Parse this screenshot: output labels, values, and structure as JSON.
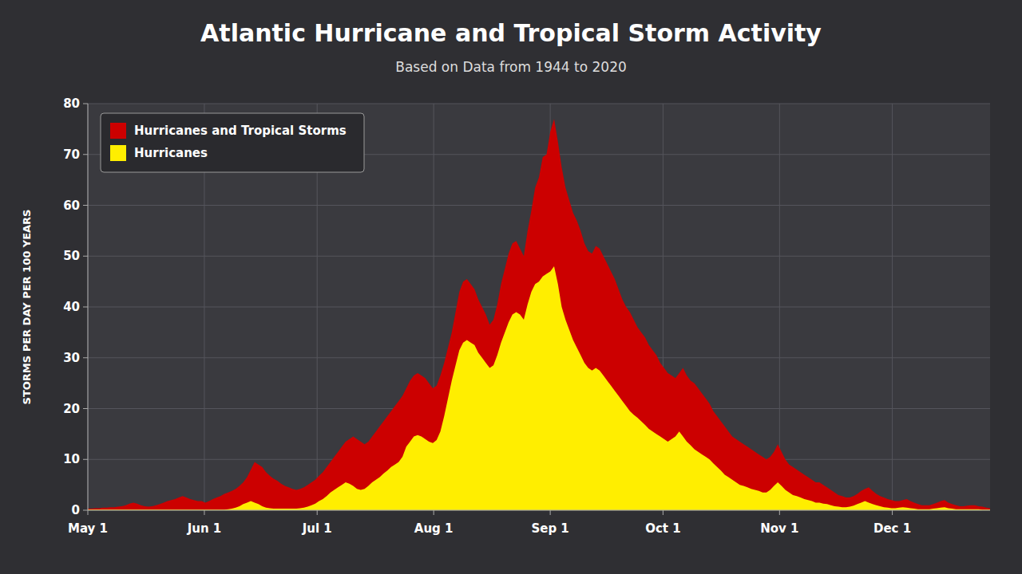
{
  "chart_data": {
    "type": "area",
    "title": "Atlantic Hurricane and Tropical Storm Activity",
    "subtitle": "Based on Data from 1944 to 2020",
    "y_label": "STORMS PER DAY PER 100 YEARS",
    "x": [
      0,
      1.0084,
      2.0168,
      3.0252,
      4.0336,
      5.042,
      6.0504,
      7.0588,
      8.0672,
      9.0756,
      10.084,
      11.0924,
      12.1008,
      13.1092,
      14.1176,
      15.1261,
      16.1345,
      17.1429,
      18.1513,
      19.1597,
      20.1681,
      21.1765,
      22.1849,
      23.1933,
      24.2017,
      25.2101,
      26.2185,
      27.2269,
      28.2353,
      29.2437,
      30.2521,
      31.2605,
      32.2689,
      33.2773,
      34.2857,
      35.2941,
      36.3025,
      37.3109,
      38.3193,
      39.3277,
      40.3361,
      41.3445,
      42.3529,
      43.3613,
      44.3697,
      45.3782,
      46.3866,
      47.395,
      48.4034,
      49.4118,
      50.4202,
      51.4286,
      52.437,
      53.4454,
      54.4538,
      55.4622,
      56.4706,
      57.479,
      58.4874,
      59.4958,
      60.5042,
      61.5126,
      62.521,
      63.5294,
      64.5378,
      65.5462,
      66.5546,
      67.563,
      68.5714,
      69.5798,
      70.5882,
      71.5966,
      72.605,
      73.6134,
      74.6218,
      75.6303,
      76.6387,
      77.6471,
      78.6555,
      79.6639,
      80.6723,
      81.6807,
      82.6891,
      83.6975,
      84.7059,
      85.7143,
      86.7227,
      87.7311,
      88.7395,
      89.7479,
      90.7563,
      91.7647,
      92.7731,
      93.7815,
      94.7899,
      95.7983,
      96.8067,
      97.8151,
      98.8235,
      99.8319,
      100.8403,
      101.8487,
      102.8571,
      103.8655,
      104.8739,
      105.8824,
      106.8908,
      107.8992,
      108.9076,
      109.916,
      110.9244,
      111.9328,
      112.9412,
      113.9496,
      114.958,
      115.9664,
      116.9748,
      117.9832,
      118.9916,
      120,
      121.0084,
      122.0168,
      123.0252,
      124.0336,
      125.042,
      126.0504,
      127.0588,
      128.0672,
      129.0756,
      130.084,
      131.0924,
      132.1008,
      133.1092,
      134.1176,
      135.1261,
      136.1345,
      137.1429,
      138.1513,
      139.1597,
      140.1681,
      141.1765,
      142.1849,
      143.1933,
      144.2017,
      145.2101,
      146.2185,
      147.2269,
      148.2353,
      149.2437,
      150.2521,
      151.2605,
      152.2689,
      153.2773,
      154.2857,
      155.2941,
      156.3025,
      157.3109,
      158.3193,
      159.3277,
      160.3361,
      161.3445,
      162.3529,
      163.3613,
      164.3697,
      165.3782,
      166.3866,
      167.395,
      168.4034,
      169.4118,
      170.4202,
      171.4286,
      172.437,
      173.4454,
      174.4538,
      175.4622,
      176.4706,
      177.479,
      178.4874,
      179.4958,
      180.5042,
      181.5126,
      182.521,
      183.5294,
      184.5378,
      185.5462,
      186.5546,
      187.563,
      188.5714,
      189.5798,
      190.5882,
      191.5966,
      192.605,
      193.6134,
      194.6218,
      195.6303,
      196.6387,
      197.6471,
      198.6555,
      199.6639,
      200.6723,
      201.6807,
      202.6891,
      203.6975,
      204.7059,
      205.7143,
      206.7227,
      207.7311,
      208.7395,
      209.7479,
      210.7563,
      211.7647,
      212.7731,
      213.7815,
      214.7899,
      215.7983,
      216.8067,
      217.8151,
      218.8235,
      219.8319,
      220.8403,
      221.8487,
      222.8571,
      223.8655,
      224.8739,
      225.8824,
      226.8908,
      227.8992,
      228.9076,
      229.916,
      230.9244,
      231.9328,
      232.9412,
      233.9496,
      234.958,
      235.9664,
      236.9748,
      237.9832,
      238.9916,
      240
    ],
    "xlim": [
      0,
      240
    ],
    "xticks": [
      {
        "value": 0,
        "label": "May 1"
      },
      {
        "value": 31,
        "label": "Jun 1"
      },
      {
        "value": 61,
        "label": "Jul 1"
      },
      {
        "value": 92,
        "label": "Aug 1"
      },
      {
        "value": 123,
        "label": "Sep 1"
      },
      {
        "value": 153,
        "label": "Oct 1"
      },
      {
        "value": 184,
        "label": "Nov 1"
      },
      {
        "value": 214,
        "label": "Dec 1"
      }
    ],
    "ylim": [
      0,
      80
    ],
    "yticks": [
      0,
      10,
      20,
      30,
      40,
      50,
      60,
      70,
      80
    ],
    "grid": true,
    "legend": "upper left",
    "series": [
      {
        "name": "Hurricanes and Tropical Storms",
        "color": "#cc0000",
        "values": [
          0.3,
          0.3,
          0.4,
          0.4,
          0.5,
          0.5,
          0.6,
          0.6,
          0.7,
          0.8,
          1.0,
          1.3,
          1.5,
          1.3,
          1.0,
          0.8,
          0.7,
          0.8,
          1.0,
          1.2,
          1.5,
          1.8,
          2.0,
          2.2,
          2.5,
          2.8,
          2.5,
          2.2,
          2.0,
          1.8,
          1.8,
          1.5,
          1.8,
          2.2,
          2.5,
          2.8,
          3.2,
          3.5,
          3.8,
          4.2,
          4.8,
          5.5,
          6.5,
          8.0,
          9.5,
          9.0,
          8.5,
          7.5,
          6.8,
          6.2,
          5.8,
          5.2,
          4.8,
          4.5,
          4.2,
          4.0,
          4.2,
          4.5,
          5.0,
          5.5,
          6.0,
          6.8,
          7.5,
          8.5,
          9.5,
          10.5,
          11.5,
          12.5,
          13.5,
          14.0,
          14.5,
          14.0,
          13.5,
          13.0,
          13.5,
          14.5,
          15.5,
          16.5,
          17.5,
          18.5,
          19.5,
          20.5,
          21.5,
          22.5,
          24.0,
          25.5,
          26.5,
          27.0,
          26.5,
          26.0,
          25.0,
          24.0,
          24.5,
          26.5,
          29.0,
          32.0,
          35.0,
          39.0,
          43.0,
          45.0,
          45.5,
          44.5,
          43.5,
          41.5,
          40.0,
          38.5,
          36.5,
          37.5,
          40.5,
          44.5,
          47.5,
          50.5,
          52.5,
          53.0,
          51.5,
          50.0,
          55.0,
          59.0,
          63.5,
          65.5,
          69.5,
          70.0,
          74.5,
          77.0,
          72.5,
          67.5,
          63.5,
          61.0,
          58.5,
          57.0,
          55.0,
          52.5,
          51.0,
          50.5,
          52.0,
          51.5,
          50.0,
          48.5,
          47.0,
          45.5,
          43.5,
          41.5,
          40.0,
          39.0,
          37.5,
          36.0,
          35.0,
          34.0,
          32.5,
          31.5,
          30.5,
          29.0,
          28.0,
          27.0,
          26.5,
          26.0,
          27.0,
          28.0,
          26.5,
          25.5,
          25.0,
          24.0,
          23.0,
          22.0,
          21.0,
          19.5,
          18.5,
          17.5,
          16.5,
          15.5,
          14.5,
          14.0,
          13.5,
          13.0,
          12.5,
          12.0,
          11.5,
          11.0,
          10.5,
          10.0,
          10.5,
          11.5,
          13.0,
          11.5,
          10.0,
          9.0,
          8.5,
          8.0,
          7.5,
          7.0,
          6.5,
          6.0,
          5.5,
          5.5,
          5.0,
          4.5,
          4.0,
          3.5,
          3.0,
          2.8,
          2.5,
          2.5,
          2.8,
          3.2,
          3.8,
          4.2,
          4.5,
          3.8,
          3.2,
          2.8,
          2.5,
          2.2,
          2.0,
          1.8,
          1.8,
          2.0,
          2.2,
          1.8,
          1.5,
          1.2,
          1.0,
          1.0,
          1.0,
          1.2,
          1.5,
          1.8,
          2.0,
          1.5,
          1.2,
          1.0,
          0.8,
          0.8,
          0.9,
          1.0,
          1.0,
          0.8,
          0.7,
          0.5,
          0.4
        ]
      },
      {
        "name": "Hurricanes",
        "color": "#ffee00",
        "values": [
          0.1,
          0.1,
          0.1,
          0.1,
          0.1,
          0.1,
          0.1,
          0.1,
          0.1,
          0.1,
          0.1,
          0.1,
          0.1,
          0.1,
          0.1,
          0.1,
          0.1,
          0.1,
          0.1,
          0.1,
          0.1,
          0.1,
          0.1,
          0.1,
          0.1,
          0.1,
          0.1,
          0.1,
          0.1,
          0.1,
          0.1,
          0.1,
          0.1,
          0.1,
          0.1,
          0.1,
          0.1,
          0.2,
          0.3,
          0.5,
          0.8,
          1.2,
          1.5,
          1.8,
          1.5,
          1.2,
          0.8,
          0.5,
          0.4,
          0.3,
          0.3,
          0.3,
          0.3,
          0.3,
          0.3,
          0.3,
          0.4,
          0.5,
          0.7,
          1.0,
          1.3,
          1.8,
          2.2,
          2.8,
          3.5,
          4.0,
          4.5,
          5.0,
          5.5,
          5.2,
          4.8,
          4.2,
          4.0,
          4.2,
          4.8,
          5.5,
          6.0,
          6.5,
          7.2,
          7.8,
          8.5,
          9.0,
          9.5,
          10.5,
          12.5,
          13.5,
          14.5,
          14.8,
          14.5,
          14.0,
          13.5,
          13.2,
          13.8,
          15.5,
          18.5,
          22.0,
          25.5,
          28.5,
          31.5,
          33.0,
          33.5,
          33.0,
          32.5,
          31.0,
          30.0,
          29.0,
          28.0,
          28.5,
          30.5,
          33.0,
          35.0,
          37.0,
          38.5,
          39.0,
          38.5,
          37.5,
          40.5,
          43.0,
          44.5,
          45.0,
          46.0,
          46.5,
          47.0,
          48.0,
          44.5,
          40.0,
          37.5,
          35.5,
          33.5,
          32.0,
          30.5,
          29.0,
          28.0,
          27.5,
          28.0,
          27.5,
          26.5,
          25.5,
          24.5,
          23.5,
          22.5,
          21.5,
          20.5,
          19.5,
          18.8,
          18.2,
          17.5,
          16.8,
          16.0,
          15.5,
          15.0,
          14.5,
          14.0,
          13.5,
          14.0,
          14.5,
          15.5,
          14.5,
          13.5,
          12.8,
          12.0,
          11.5,
          11.0,
          10.5,
          10.0,
          9.2,
          8.5,
          7.8,
          7.0,
          6.5,
          6.0,
          5.5,
          5.0,
          4.8,
          4.5,
          4.2,
          4.0,
          3.8,
          3.5,
          3.5,
          4.0,
          4.8,
          5.5,
          4.8,
          4.0,
          3.5,
          3.0,
          2.8,
          2.5,
          2.2,
          2.0,
          1.8,
          1.5,
          1.5,
          1.3,
          1.2,
          1.0,
          0.8,
          0.7,
          0.6,
          0.6,
          0.7,
          0.9,
          1.2,
          1.5,
          1.8,
          1.5,
          1.2,
          1.0,
          0.8,
          0.6,
          0.5,
          0.4,
          0.4,
          0.5,
          0.6,
          0.5,
          0.4,
          0.3,
          0.2,
          0.2,
          0.2,
          0.2,
          0.3,
          0.4,
          0.5,
          0.6,
          0.4,
          0.3,
          0.2,
          0.2,
          0.2,
          0.2,
          0.2,
          0.2,
          0.2,
          0.1,
          0.1,
          0.1
        ]
      }
    ]
  }
}
